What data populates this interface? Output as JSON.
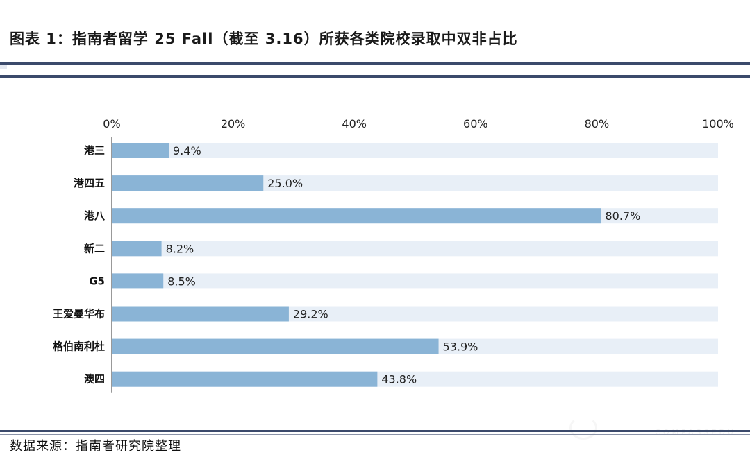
{
  "figure": {
    "title": "图表 1：指南者留学 25 Fall（截至 3.16）所获各类院校录取中双非占比",
    "source": "数据来源：指南者研究院整理",
    "watermark": "COMPASSEDU"
  },
  "chart_data": {
    "type": "bar",
    "orientation": "horizontal",
    "title": "图表 1：指南者留学 25 Fall（截至 3.16）所获各类院校录取中双非占比",
    "xlabel": "",
    "ylabel": "",
    "xlim": [
      0,
      100
    ],
    "x_ticks": [
      "0%",
      "20%",
      "40%",
      "60%",
      "80%",
      "100%"
    ],
    "x_tick_values": [
      0,
      20,
      40,
      60,
      80,
      100
    ],
    "categories": [
      "港三",
      "港四五",
      "港八",
      "新二",
      "G5",
      "王爱曼华布",
      "格伯南利杜",
      "澳四"
    ],
    "values": [
      9.4,
      25.0,
      80.7,
      8.2,
      8.5,
      29.2,
      53.9,
      43.8
    ],
    "value_labels": [
      "9.4%",
      "25.0%",
      "80.7%",
      "8.2%",
      "8.5%",
      "29.2%",
      "53.9%",
      "43.8%"
    ],
    "grid": false,
    "legend": "none",
    "colors": {
      "bar": "#8ab4d6",
      "track": "#e8eff7"
    }
  }
}
